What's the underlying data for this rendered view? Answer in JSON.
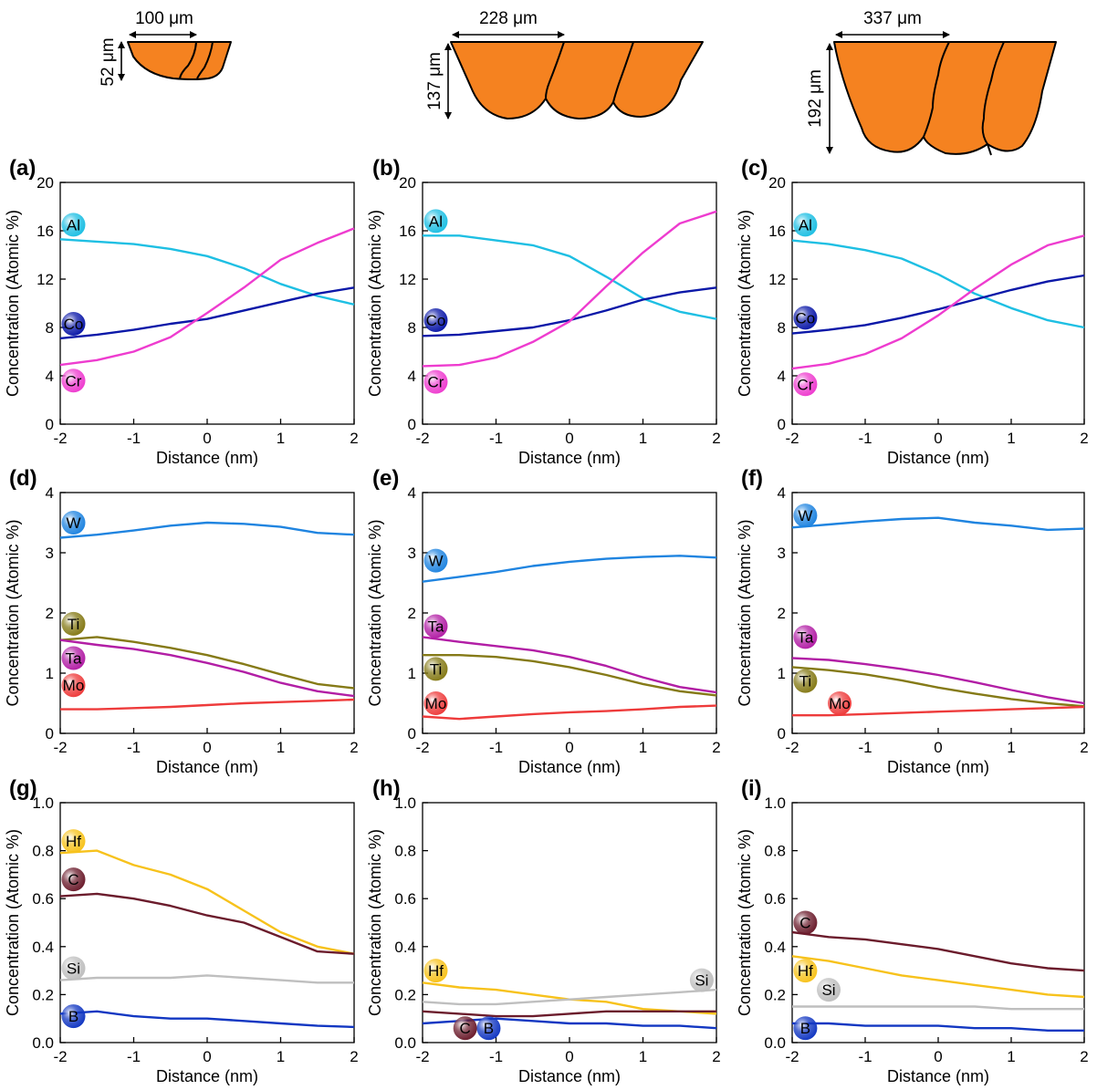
{
  "grain_schematics": [
    {
      "width_label": "100 μm",
      "height_label": "52 μm"
    },
    {
      "width_label": "228 μm",
      "height_label": "137 μm"
    },
    {
      "width_label": "337 μm",
      "height_label": "192 μm"
    }
  ],
  "colors": {
    "grain_fill": "#f58220",
    "Al": "#1ebfe3",
    "Co": "#0b18a8",
    "Cr": "#ee3ccf",
    "W": "#1f84e0",
    "Ti": "#857a17",
    "Ta": "#b21ea5",
    "Mo": "#ee3b3b",
    "Hf": "#f7c21c",
    "C": "#6b1c2c",
    "Si": "#bfbfbf",
    "B": "#1237c2"
  },
  "chart_data": [
    {
      "panel": "(a)",
      "type": "line",
      "xlabel": "Distance (nm)",
      "ylabel": "Concentration (Atomic %)",
      "xlim": [
        -2,
        2
      ],
      "ylim": [
        0,
        20
      ],
      "xticks": [
        "-2",
        "-1",
        "0",
        "1",
        "2"
      ],
      "yticks": [
        "0",
        "4",
        "8",
        "12",
        "16",
        "20"
      ],
      "x": [
        -2,
        -1.5,
        -1,
        -0.5,
        0,
        0.5,
        1,
        1.5,
        2
      ],
      "series": [
        {
          "name": "Al",
          "values": [
            15.3,
            15.1,
            14.9,
            14.5,
            13.9,
            12.9,
            11.6,
            10.6,
            9.9
          ]
        },
        {
          "name": "Co",
          "values": [
            7.1,
            7.4,
            7.8,
            8.3,
            8.7,
            9.4,
            10.1,
            10.8,
            11.3
          ]
        },
        {
          "name": "Cr",
          "values": [
            4.9,
            5.3,
            6.0,
            7.2,
            9.2,
            11.3,
            13.6,
            15.0,
            16.2
          ]
        }
      ],
      "labels": [
        {
          "text": "Al",
          "y": 16.5
        },
        {
          "text": "Co",
          "y": 8.3
        },
        {
          "text": "Cr",
          "y": 3.6
        }
      ]
    },
    {
      "panel": "(b)",
      "type": "line",
      "xlabel": "Distance (nm)",
      "ylabel": "Concentration (Atomic %)",
      "xlim": [
        -2,
        2
      ],
      "ylim": [
        0,
        20
      ],
      "xticks": [
        "-2",
        "-1",
        "0",
        "1",
        "2"
      ],
      "yticks": [
        "0",
        "4",
        "8",
        "12",
        "16",
        "20"
      ],
      "x": [
        -2,
        -1.5,
        -1,
        -0.5,
        0,
        0.5,
        1,
        1.5,
        2
      ],
      "series": [
        {
          "name": "Al",
          "values": [
            15.6,
            15.6,
            15.2,
            14.8,
            13.9,
            12.2,
            10.4,
            9.3,
            8.7
          ]
        },
        {
          "name": "Co",
          "values": [
            7.3,
            7.4,
            7.7,
            8.0,
            8.6,
            9.4,
            10.3,
            10.9,
            11.3
          ]
        },
        {
          "name": "Cr",
          "values": [
            4.8,
            4.9,
            5.5,
            6.8,
            8.5,
            11.4,
            14.2,
            16.6,
            17.6
          ]
        }
      ],
      "labels": [
        {
          "text": "Al",
          "y": 16.8
        },
        {
          "text": "Co",
          "y": 8.6
        },
        {
          "text": "Cr",
          "y": 3.5
        }
      ]
    },
    {
      "panel": "(c)",
      "type": "line",
      "xlabel": "Distance (nm)",
      "ylabel": "Concentration (Atomic %)",
      "xlim": [
        -2,
        2
      ],
      "ylim": [
        0,
        20
      ],
      "xticks": [
        "-2",
        "-1",
        "0",
        "1",
        "2"
      ],
      "yticks": [
        "0",
        "4",
        "8",
        "12",
        "16",
        "20"
      ],
      "x": [
        -2,
        -1.5,
        -1,
        -0.5,
        0,
        0.5,
        1,
        1.5,
        2
      ],
      "series": [
        {
          "name": "Al",
          "values": [
            15.2,
            14.9,
            14.4,
            13.7,
            12.4,
            10.8,
            9.6,
            8.6,
            8.0
          ]
        },
        {
          "name": "Co",
          "values": [
            7.5,
            7.8,
            8.2,
            8.8,
            9.5,
            10.3,
            11.1,
            11.8,
            12.3
          ]
        },
        {
          "name": "Cr",
          "values": [
            4.6,
            5.0,
            5.8,
            7.1,
            9.0,
            11.2,
            13.2,
            14.8,
            15.6
          ]
        }
      ],
      "labels": [
        {
          "text": "Al",
          "y": 16.5
        },
        {
          "text": "Co",
          "y": 8.8
        },
        {
          "text": "Cr",
          "y": 3.3
        }
      ]
    },
    {
      "panel": "(d)",
      "type": "line",
      "xlabel": "Distance (nm)",
      "ylabel": "Concentration (Atomic %)",
      "xlim": [
        -2,
        2
      ],
      "ylim": [
        0,
        4
      ],
      "xticks": [
        "-2",
        "-1",
        "0",
        "1",
        "2"
      ],
      "yticks": [
        "0",
        "1",
        "2",
        "3",
        "4"
      ],
      "x": [
        -2,
        -1.5,
        -1,
        -0.5,
        0,
        0.5,
        1,
        1.5,
        2
      ],
      "series": [
        {
          "name": "W",
          "values": [
            3.25,
            3.3,
            3.37,
            3.45,
            3.5,
            3.48,
            3.43,
            3.33,
            3.3
          ]
        },
        {
          "name": "Ti",
          "values": [
            1.55,
            1.6,
            1.52,
            1.42,
            1.3,
            1.15,
            0.98,
            0.82,
            0.75
          ]
        },
        {
          "name": "Ta",
          "values": [
            1.55,
            1.47,
            1.4,
            1.3,
            1.17,
            1.02,
            0.84,
            0.7,
            0.62
          ]
        },
        {
          "name": "Mo",
          "values": [
            0.4,
            0.4,
            0.42,
            0.44,
            0.47,
            0.5,
            0.52,
            0.54,
            0.56
          ]
        }
      ],
      "labels": [
        {
          "text": "W",
          "y": 3.5
        },
        {
          "text": "Ti",
          "y": 1.82
        },
        {
          "text": "Ta",
          "y": 1.25
        },
        {
          "text": "Mo",
          "y": 0.8
        }
      ]
    },
    {
      "panel": "(e)",
      "type": "line",
      "xlabel": "Distance (nm)",
      "ylabel": "Concentration (Atomic %)",
      "xlim": [
        -2,
        2
      ],
      "ylim": [
        0,
        4
      ],
      "xticks": [
        "-2",
        "-1",
        "0",
        "1",
        "2"
      ],
      "yticks": [
        "0",
        "1",
        "2",
        "3",
        "4"
      ],
      "x": [
        -2,
        -1.5,
        -1,
        -0.5,
        0,
        0.5,
        1,
        1.5,
        2
      ],
      "series": [
        {
          "name": "W",
          "values": [
            2.52,
            2.6,
            2.68,
            2.78,
            2.85,
            2.9,
            2.93,
            2.95,
            2.92
          ]
        },
        {
          "name": "Ta",
          "values": [
            1.6,
            1.52,
            1.45,
            1.38,
            1.27,
            1.12,
            0.93,
            0.77,
            0.68
          ]
        },
        {
          "name": "Ti",
          "values": [
            1.3,
            1.3,
            1.27,
            1.2,
            1.1,
            0.97,
            0.82,
            0.7,
            0.63
          ]
        },
        {
          "name": "Mo",
          "values": [
            0.28,
            0.24,
            0.28,
            0.32,
            0.35,
            0.37,
            0.4,
            0.44,
            0.46
          ]
        }
      ],
      "labels": [
        {
          "text": "W",
          "y": 2.87
        },
        {
          "text": "Ta",
          "y": 1.78
        },
        {
          "text": "Ti",
          "y": 1.07
        },
        {
          "text": "Mo",
          "y": 0.5
        }
      ]
    },
    {
      "panel": "(f)",
      "type": "line",
      "xlabel": "Distance (nm)",
      "ylabel": "Concentration (Atomic %)",
      "xlim": [
        -2,
        2
      ],
      "ylim": [
        0,
        4
      ],
      "xticks": [
        "-2",
        "-1",
        "0",
        "1",
        "2"
      ],
      "yticks": [
        "0",
        "1",
        "2",
        "3",
        "4"
      ],
      "x": [
        -2,
        -1.5,
        -1,
        -0.5,
        0,
        0.5,
        1,
        1.5,
        2
      ],
      "series": [
        {
          "name": "W",
          "values": [
            3.42,
            3.47,
            3.52,
            3.56,
            3.58,
            3.5,
            3.45,
            3.38,
            3.4
          ]
        },
        {
          "name": "Ta",
          "values": [
            1.25,
            1.22,
            1.15,
            1.07,
            0.97,
            0.85,
            0.72,
            0.6,
            0.5
          ]
        },
        {
          "name": "Ti",
          "values": [
            1.1,
            1.05,
            0.98,
            0.88,
            0.76,
            0.66,
            0.57,
            0.5,
            0.45
          ]
        },
        {
          "name": "Mo",
          "values": [
            0.3,
            0.3,
            0.32,
            0.34,
            0.36,
            0.38,
            0.4,
            0.42,
            0.44
          ]
        }
      ],
      "labels": [
        {
          "text": "W",
          "y": 3.62
        },
        {
          "text": "Ta",
          "y": 1.6
        },
        {
          "text": "Ti",
          "y": 0.87
        },
        {
          "text": "Mo",
          "y": 0.5,
          "x": -1.35
        }
      ]
    },
    {
      "panel": "(g)",
      "type": "line",
      "xlabel": "Distance (nm)",
      "ylabel": "Concentration (Atomic %)",
      "xlim": [
        -2,
        2
      ],
      "ylim": [
        0,
        1
      ],
      "xticks": [
        "-2",
        "-1",
        "0",
        "1",
        "2"
      ],
      "yticks": [
        "0.0",
        "0.2",
        "0.4",
        "0.6",
        "0.8",
        "1.0"
      ],
      "x": [
        -2,
        -1.5,
        -1,
        -0.5,
        0,
        0.5,
        1,
        1.5,
        2
      ],
      "series": [
        {
          "name": "Hf",
          "values": [
            0.79,
            0.8,
            0.74,
            0.7,
            0.64,
            0.55,
            0.46,
            0.4,
            0.37
          ]
        },
        {
          "name": "C",
          "values": [
            0.61,
            0.62,
            0.6,
            0.57,
            0.53,
            0.5,
            0.44,
            0.38,
            0.37
          ]
        },
        {
          "name": "Si",
          "values": [
            0.26,
            0.27,
            0.27,
            0.27,
            0.28,
            0.27,
            0.26,
            0.25,
            0.25
          ]
        },
        {
          "name": "B",
          "values": [
            0.12,
            0.13,
            0.11,
            0.1,
            0.1,
            0.09,
            0.08,
            0.07,
            0.065
          ]
        }
      ],
      "labels": [
        {
          "text": "Hf",
          "y": 0.84
        },
        {
          "text": "C",
          "y": 0.68
        },
        {
          "text": "Si",
          "y": 0.31
        },
        {
          "text": "B",
          "y": 0.11
        }
      ]
    },
    {
      "panel": "(h)",
      "type": "line",
      "xlabel": "Distance (nm)",
      "ylabel": "Concentration (Atomic %)",
      "xlim": [
        -2,
        2
      ],
      "ylim": [
        0,
        1
      ],
      "xticks": [
        "-2",
        "-1",
        "0",
        "1",
        "2"
      ],
      "yticks": [
        "0.0",
        "0.2",
        "0.4",
        "0.6",
        "0.8",
        "1.0"
      ],
      "x": [
        -2,
        -1.5,
        -1,
        -0.5,
        0,
        0.5,
        1,
        1.5,
        2
      ],
      "series": [
        {
          "name": "Hf",
          "values": [
            0.25,
            0.23,
            0.22,
            0.2,
            0.18,
            0.17,
            0.14,
            0.13,
            0.12
          ]
        },
        {
          "name": "Si",
          "values": [
            0.17,
            0.16,
            0.16,
            0.17,
            0.18,
            0.19,
            0.2,
            0.21,
            0.22
          ]
        },
        {
          "name": "C",
          "values": [
            0.13,
            0.12,
            0.11,
            0.11,
            0.12,
            0.13,
            0.13,
            0.13,
            0.13
          ]
        },
        {
          "name": "B",
          "values": [
            0.08,
            0.09,
            0.1,
            0.09,
            0.08,
            0.08,
            0.07,
            0.07,
            0.06
          ]
        }
      ],
      "labels": [
        {
          "text": "Hf",
          "y": 0.3
        },
        {
          "text": "Si",
          "y": 0.26,
          "x": 1.8
        },
        {
          "text": "C",
          "y": 0.06,
          "x": -1.42
        },
        {
          "text": "B",
          "y": 0.06,
          "x": -1.1
        }
      ]
    },
    {
      "panel": "(i)",
      "type": "line",
      "xlabel": "Distance (nm)",
      "ylabel": "Concentration (Atomic %)",
      "xlim": [
        -2,
        2
      ],
      "ylim": [
        0,
        1
      ],
      "xticks": [
        "-2",
        "-1",
        "0",
        "1",
        "2"
      ],
      "yticks": [
        "0.0",
        "0.2",
        "0.4",
        "0.6",
        "0.8",
        "1.0"
      ],
      "x": [
        -2,
        -1.5,
        -1,
        -0.5,
        0,
        0.5,
        1,
        1.5,
        2
      ],
      "series": [
        {
          "name": "C",
          "values": [
            0.46,
            0.44,
            0.43,
            0.41,
            0.39,
            0.36,
            0.33,
            0.31,
            0.3
          ]
        },
        {
          "name": "Hf",
          "values": [
            0.36,
            0.34,
            0.31,
            0.28,
            0.26,
            0.24,
            0.22,
            0.2,
            0.19
          ]
        },
        {
          "name": "Si",
          "values": [
            0.15,
            0.15,
            0.15,
            0.15,
            0.15,
            0.15,
            0.14,
            0.14,
            0.14
          ]
        },
        {
          "name": "B",
          "values": [
            0.08,
            0.08,
            0.07,
            0.07,
            0.07,
            0.06,
            0.06,
            0.05,
            0.05
          ]
        }
      ],
      "labels": [
        {
          "text": "C",
          "y": 0.5
        },
        {
          "text": "Hf",
          "y": 0.3
        },
        {
          "text": "Si",
          "y": 0.22,
          "x": -1.5
        },
        {
          "text": "B",
          "y": 0.06
        }
      ]
    }
  ]
}
